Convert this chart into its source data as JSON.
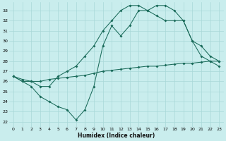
{
  "xlabel": "Humidex (Indice chaleur)",
  "xlim": [
    -0.5,
    23.5
  ],
  "ylim": [
    21.5,
    33.8
  ],
  "yticks": [
    22,
    23,
    24,
    25,
    26,
    27,
    28,
    29,
    30,
    31,
    32,
    33
  ],
  "xticks": [
    0,
    1,
    2,
    3,
    4,
    5,
    6,
    7,
    8,
    9,
    10,
    11,
    12,
    13,
    14,
    15,
    16,
    17,
    18,
    19,
    20,
    21,
    22,
    23
  ],
  "bg_color": "#c9eded",
  "grid_color": "#a8d8d8",
  "line_color": "#1a6b5a",
  "lines": [
    {
      "x": [
        0,
        1,
        2,
        3,
        4,
        5,
        6,
        7,
        8,
        9,
        10,
        11,
        12,
        13,
        14,
        15,
        16,
        17,
        18,
        19,
        20,
        21,
        22,
        23
      ],
      "y": [
        26.5,
        26.0,
        25.5,
        24.5,
        24.0,
        23.5,
        23.2,
        22.2,
        23.2,
        25.5,
        29.5,
        31.5,
        30.5,
        31.5,
        33.0,
        33.0,
        33.5,
        33.5,
        33.0,
        32.0,
        30.0,
        29.5,
        28.5,
        28.0
      ]
    },
    {
      "x": [
        0,
        1,
        2,
        3,
        4,
        5,
        6,
        7,
        8,
        9,
        10,
        11,
        12,
        13,
        14,
        15,
        16,
        17,
        18,
        19,
        20,
        21,
        22,
        23
      ],
      "y": [
        26.5,
        26.2,
        26.0,
        26.0,
        26.2,
        26.3,
        26.4,
        26.5,
        26.6,
        26.8,
        27.0,
        27.1,
        27.2,
        27.3,
        27.4,
        27.5,
        27.5,
        27.6,
        27.7,
        27.8,
        27.8,
        27.9,
        28.0,
        28.0
      ]
    },
    {
      "x": [
        0,
        1,
        2,
        3,
        4,
        5,
        6,
        7,
        8,
        9,
        10,
        11,
        12,
        13,
        14,
        15,
        16,
        17,
        18,
        19,
        20,
        21,
        22,
        23
      ],
      "y": [
        26.5,
        26.0,
        26.0,
        25.5,
        25.5,
        26.5,
        27.0,
        27.5,
        28.5,
        29.5,
        31.0,
        32.0,
        33.0,
        33.5,
        33.5,
        33.0,
        32.5,
        32.0,
        32.0,
        32.0,
        30.0,
        28.5,
        28.0,
        27.5
      ]
    }
  ]
}
